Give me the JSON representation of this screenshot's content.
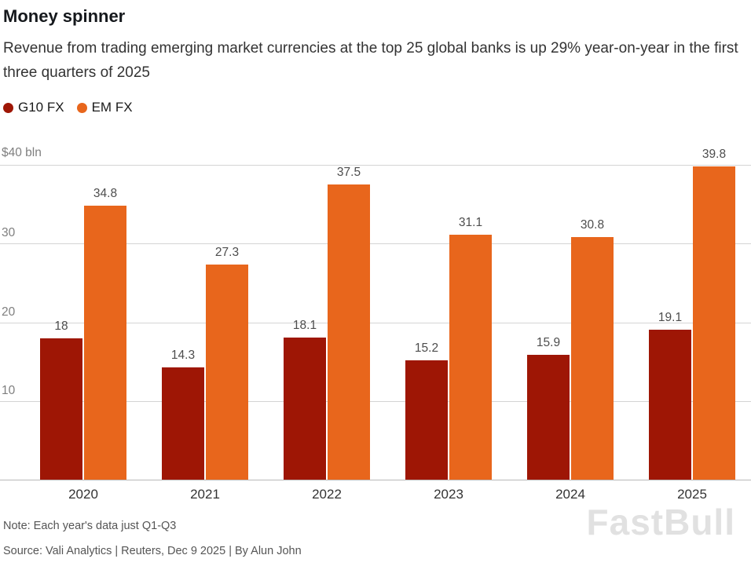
{
  "header": {
    "title": "Money spinner",
    "subtitle": "Revenue from trading emerging market currencies at the top 25 global banks is up 29% year-on-year in the first three quarters of 2025"
  },
  "legend": [
    {
      "label": "G10 FX",
      "color": "#9e1605"
    },
    {
      "label": "EM FX",
      "color": "#e8661c"
    }
  ],
  "chart_data": {
    "type": "bar",
    "categories": [
      "2020",
      "2021",
      "2022",
      "2023",
      "2024",
      "2025"
    ],
    "series": [
      {
        "name": "G10 FX",
        "color": "#9e1605",
        "values": [
          18,
          14.3,
          18.1,
          15.2,
          15.9,
          19.1
        ]
      },
      {
        "name": "EM FX",
        "color": "#e8661c",
        "values": [
          34.8,
          27.3,
          37.5,
          31.1,
          30.8,
          39.8
        ]
      }
    ],
    "title": "Money spinner",
    "xlabel": "",
    "ylabel": "$ bln",
    "ylim": [
      0,
      40
    ],
    "y_axis_top_label": "$40 bln",
    "y_ticks": [
      10,
      20,
      30,
      40
    ],
    "grid": true,
    "legend_position": "top-left"
  },
  "footer": {
    "note": "Note: Each year's data just Q1-Q3",
    "source": "Source: Vali Analytics | Reuters, Dec 9 2025 | By Alun John"
  },
  "watermark": "FastBull"
}
